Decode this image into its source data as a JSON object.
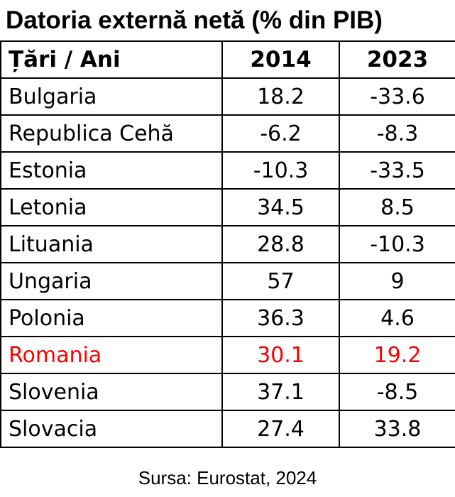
{
  "chart_data": {
    "type": "table",
    "title": "Datoria externă netă (% din PIB)",
    "columns": [
      "Țări / Ani",
      "2014",
      "2023"
    ],
    "rows": [
      {
        "country": "Bulgaria",
        "values": [
          "18.2",
          "-33.6"
        ]
      },
      {
        "country": "Republica Cehă",
        "values": [
          "-6.2",
          "-8.3"
        ]
      },
      {
        "country": "Estonia",
        "values": [
          "-10.3",
          "-33.5"
        ]
      },
      {
        "country": "Letonia",
        "values": [
          "34.5",
          "8.5"
        ]
      },
      {
        "country": "Lituania",
        "values": [
          "28.8",
          "-10.3"
        ]
      },
      {
        "country": "Ungaria",
        "values": [
          "57",
          "9"
        ]
      },
      {
        "country": "Polonia",
        "values": [
          "36.3",
          "4.6"
        ]
      },
      {
        "country": "Romania",
        "values": [
          "30.1",
          "19.2"
        ],
        "highlight": true
      },
      {
        "country": "Slovenia",
        "values": [
          "37.1",
          "-8.5"
        ]
      },
      {
        "country": "Slovacia",
        "values": [
          "27.4",
          "33.8"
        ]
      }
    ],
    "highlight_color": "#ff0000",
    "source": "Sursa: Eurostat, 2024"
  }
}
